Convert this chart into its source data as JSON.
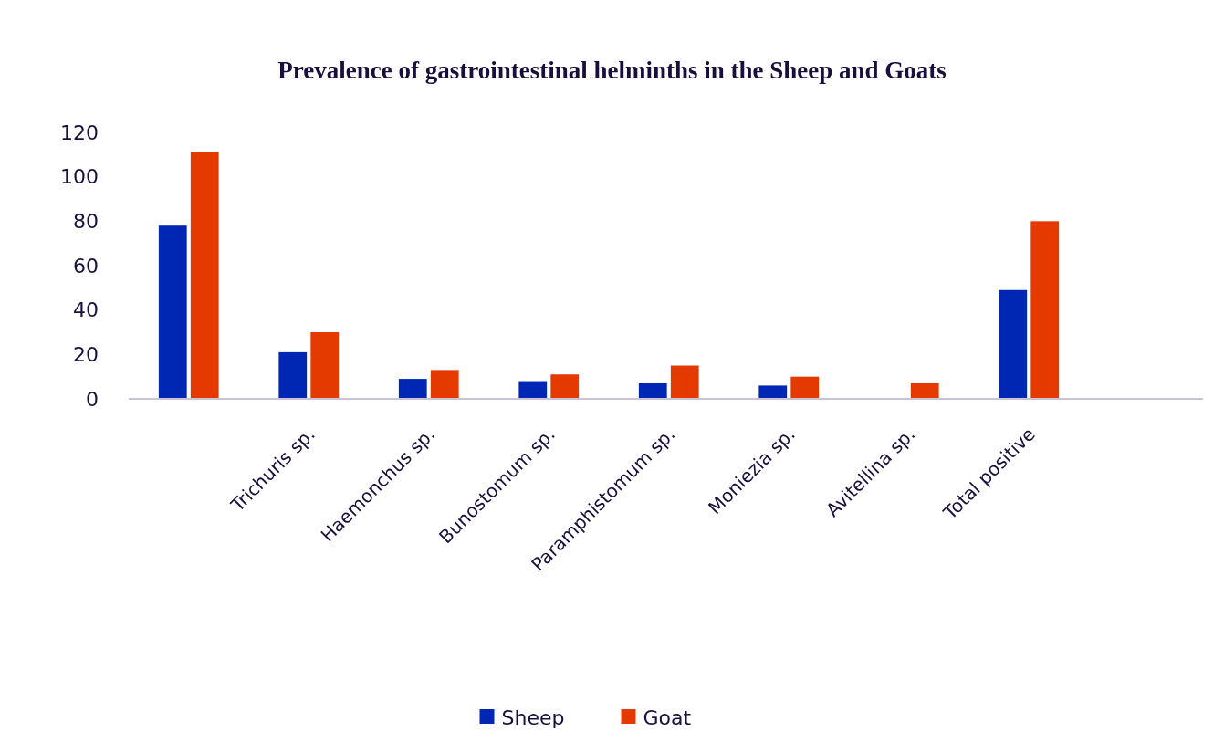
{
  "chart_data": {
    "type": "bar",
    "title": "Prevalence of gastrointestinal helminths in the Sheep and Goats",
    "categories": [
      null,
      "Trichuris sp.",
      "Haemonchus sp.",
      "Bunostomum sp.",
      "Paramphistomum sp.",
      "Moniezia sp.",
      "Avitellina sp.",
      "Total positive"
    ],
    "series": [
      {
        "name": "Sheep",
        "color": "#0026b4",
        "values": [
          78,
          21,
          9,
          8,
          7,
          6,
          null,
          49
        ]
      },
      {
        "name": "Goat",
        "color": "#e43a00",
        "values": [
          111,
          30,
          13,
          11,
          15,
          10,
          7,
          80
        ]
      }
    ],
    "ylim": [
      0,
      120
    ],
    "yticks": [
      0,
      20,
      40,
      60,
      80,
      100,
      120
    ],
    "grid": false,
    "legend": "bottom"
  }
}
